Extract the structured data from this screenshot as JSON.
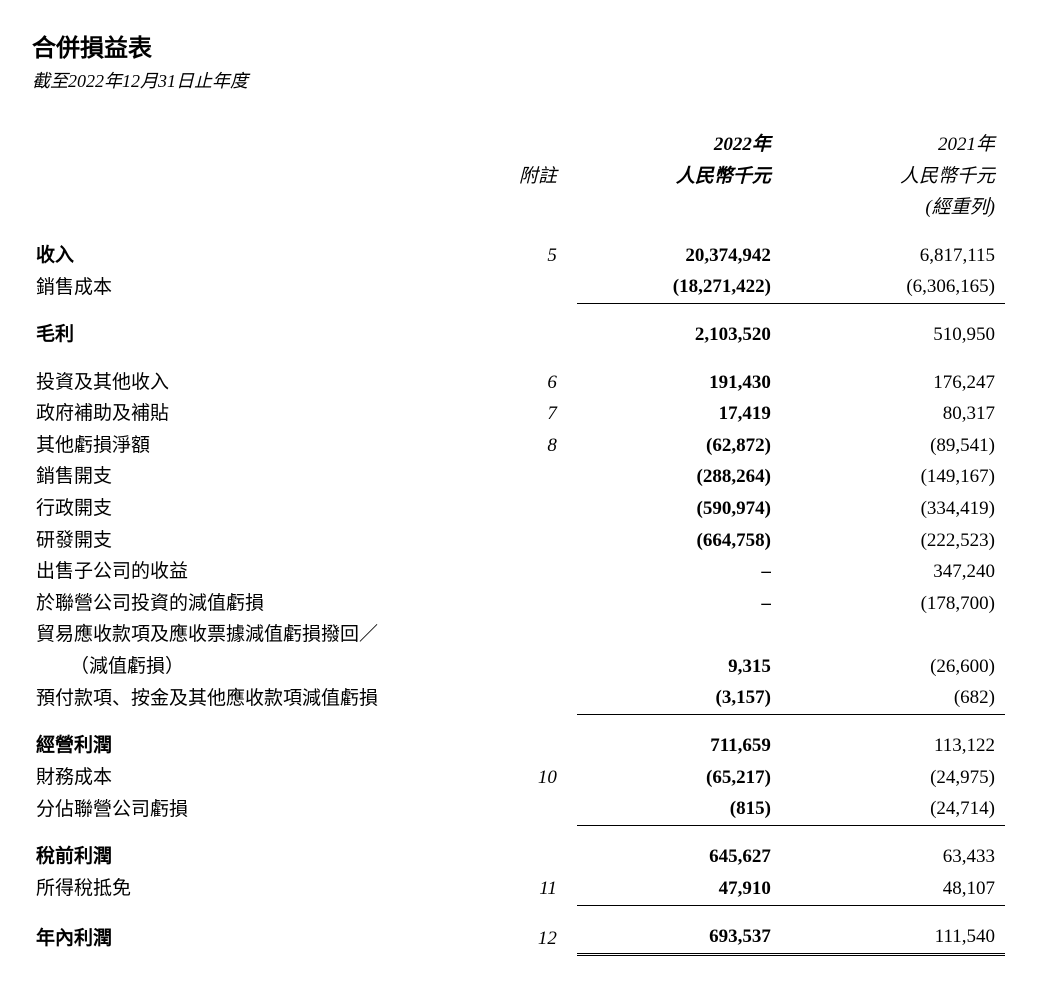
{
  "title": "合併損益表",
  "subtitle": "截至2022年12月31日止年度",
  "headers": {
    "note": "附註",
    "year2022_line1": "2022年",
    "year2022_line2": "人民幣千元",
    "year2021_line1": "2021年",
    "year2021_line2": "人民幣千元",
    "year2021_line3": "(經重列)"
  },
  "rows": {
    "revenue": {
      "label": "收入",
      "note": "5",
      "y2022": "20,374,942",
      "y2021": "6,817,115"
    },
    "cost_of_sales": {
      "label": "銷售成本",
      "note": "",
      "y2022": "(18,271,422)",
      "y2021": "(6,306,165)"
    },
    "gross_profit": {
      "label": "毛利",
      "note": "",
      "y2022": "2,103,520",
      "y2021": "510,950"
    },
    "investment_income": {
      "label": "投資及其他收入",
      "note": "6",
      "y2022": "191,430",
      "y2021": "176,247"
    },
    "government_grants": {
      "label": "政府補助及補貼",
      "note": "7",
      "y2022": "17,419",
      "y2021": "80,317"
    },
    "other_losses": {
      "label": "其他虧損淨額",
      "note": "8",
      "y2022": "(62,872)",
      "y2021": "(89,541)"
    },
    "selling_expenses": {
      "label": "銷售開支",
      "note": "",
      "y2022": "(288,264)",
      "y2021": "(149,167)"
    },
    "admin_expenses": {
      "label": "行政開支",
      "note": "",
      "y2022": "(590,974)",
      "y2021": "(334,419)"
    },
    "rd_expenses": {
      "label": "研發開支",
      "note": "",
      "y2022": "(664,758)",
      "y2021": "(222,523)"
    },
    "gain_on_disposal": {
      "label": "出售子公司的收益",
      "note": "",
      "y2022": "–",
      "y2021": "347,240"
    },
    "impairment_associates": {
      "label": "於聯營公司投資的減值虧損",
      "note": "",
      "y2022": "–",
      "y2021": "(178,700)"
    },
    "trade_receivables_line1": {
      "label": "貿易應收款項及應收票據減值虧損撥回／"
    },
    "trade_receivables_line2": {
      "label": "（減值虧損）",
      "note": "",
      "y2022": "9,315",
      "y2021": "(26,600)"
    },
    "prepayments_impairment": {
      "label": "預付款項、按金及其他應收款項減值虧損",
      "note": "",
      "y2022": "(3,157)",
      "y2021": "(682)"
    },
    "operating_profit": {
      "label": "經營利潤",
      "note": "",
      "y2022": "711,659",
      "y2021": "113,122"
    },
    "finance_cost": {
      "label": "財務成本",
      "note": "10",
      "y2022": "(65,217)",
      "y2021": "(24,975)"
    },
    "share_of_losses": {
      "label": "分佔聯營公司虧損",
      "note": "",
      "y2022": "(815)",
      "y2021": "(24,714)"
    },
    "profit_before_tax": {
      "label": "稅前利潤",
      "note": "",
      "y2022": "645,627",
      "y2021": "63,433"
    },
    "income_tax": {
      "label": "所得稅抵免",
      "note": "11",
      "y2022": "47,910",
      "y2021": "48,107"
    },
    "profit_for_year": {
      "label": "年內利潤",
      "note": "12",
      "y2022": "693,537",
      "y2021": "111,540"
    }
  },
  "styling": {
    "background_color": "#ffffff",
    "text_color": "#000000",
    "title_fontsize": 24,
    "subtitle_fontsize": 18,
    "body_fontsize": 19,
    "font_family": "serif",
    "y2022_weight": "bold",
    "y2021_weight": "normal"
  }
}
